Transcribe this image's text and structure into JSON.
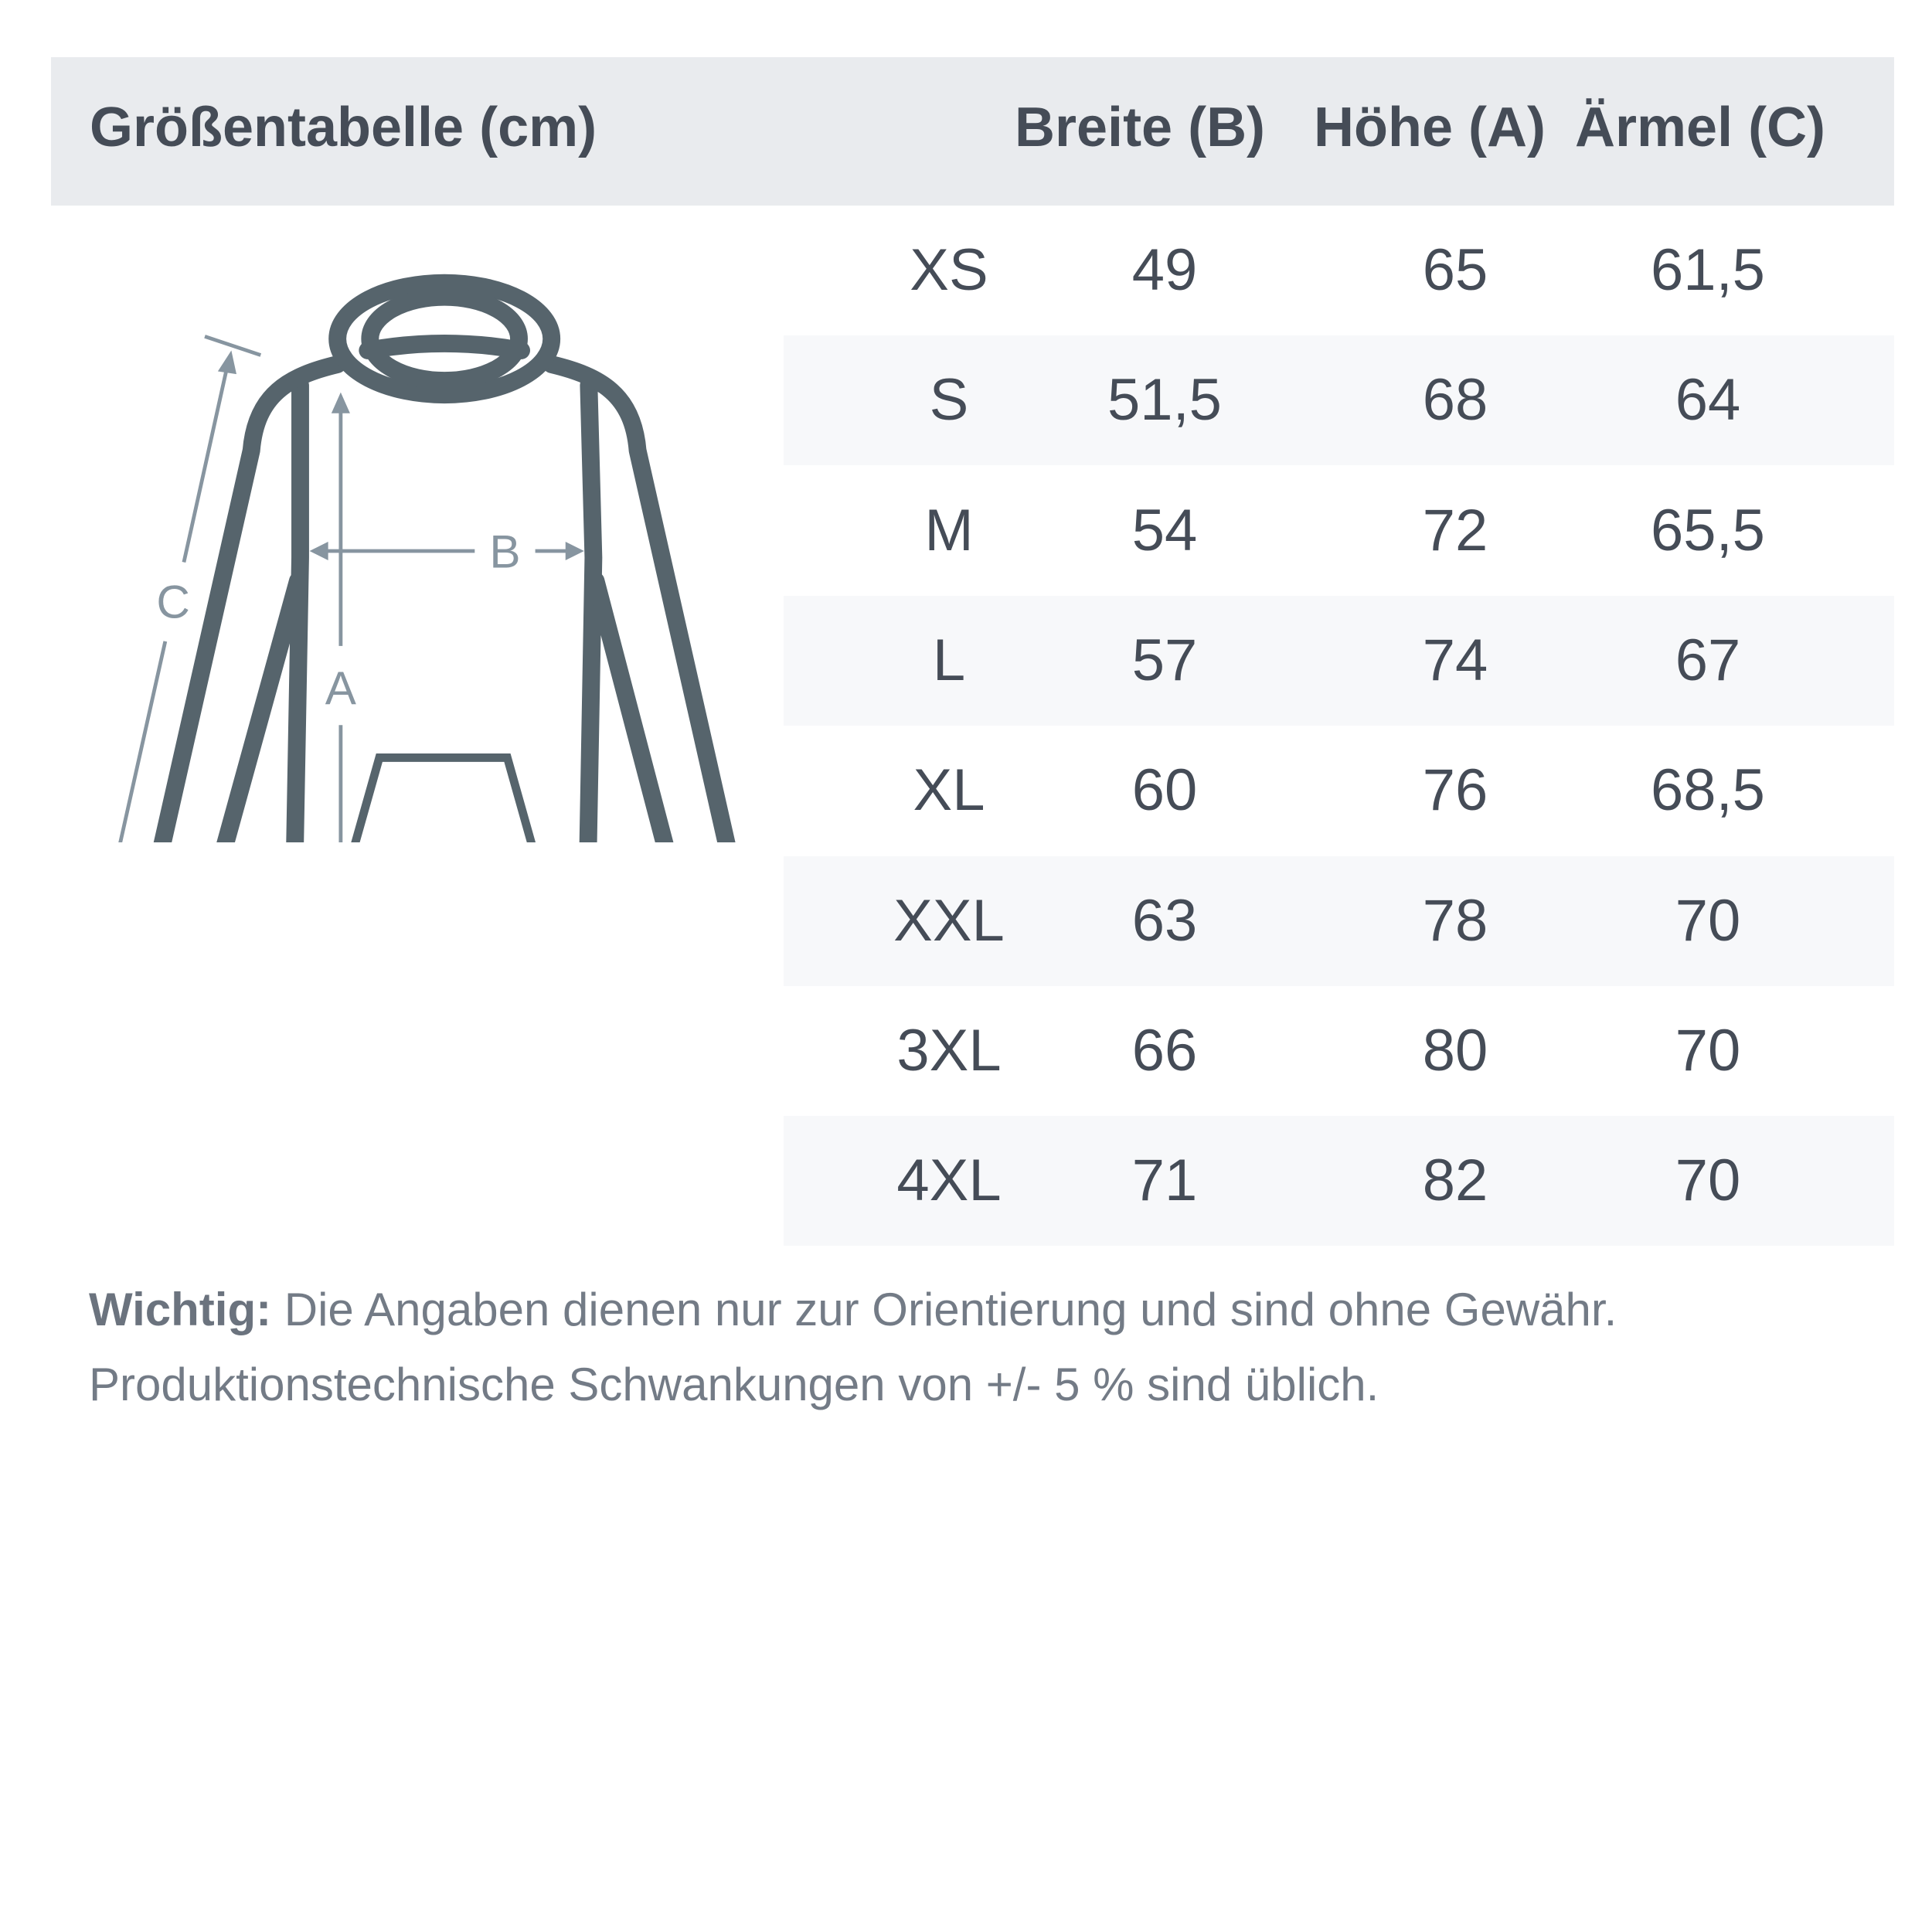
{
  "header": {
    "title": "Größentabelle (cm)",
    "columns": [
      "Breite (B)",
      "Höhe (A)",
      "Ärmel (C)"
    ]
  },
  "rows": [
    {
      "size": "XS",
      "breite": "49",
      "hoehe": "65",
      "aermel": "61,5"
    },
    {
      "size": "S",
      "breite": "51,5",
      "hoehe": "68",
      "aermel": "64"
    },
    {
      "size": "M",
      "breite": "54",
      "hoehe": "72",
      "aermel": "65,5"
    },
    {
      "size": "L",
      "breite": "57",
      "hoehe": "74",
      "aermel": "67"
    },
    {
      "size": "XL",
      "breite": "60",
      "hoehe": "76",
      "aermel": "68,5"
    },
    {
      "size": "XXL",
      "breite": "63",
      "hoehe": "78",
      "aermel": "70"
    },
    {
      "size": "3XL",
      "breite": "66",
      "hoehe": "80",
      "aermel": "70"
    },
    {
      "size": "4XL",
      "breite": "71",
      "hoehe": "82",
      "aermel": "70"
    }
  ],
  "diagram": {
    "labels": {
      "a": "A",
      "b": "B",
      "c": "C"
    },
    "outline_color": "#56646c",
    "arrow_color": "#8795a0"
  },
  "note": {
    "bold": "Wichtig:",
    "line1": " Die Angaben dienen nur zur Orientierung und sind ohne Gewähr.",
    "line2": "Produktionstechnische Schwankungen von +/- 5 % sind üblich."
  },
  "colors": {
    "header_bg": "#e9ebee",
    "stripe_bg": "#f7f8fa",
    "text": "#454c57"
  }
}
